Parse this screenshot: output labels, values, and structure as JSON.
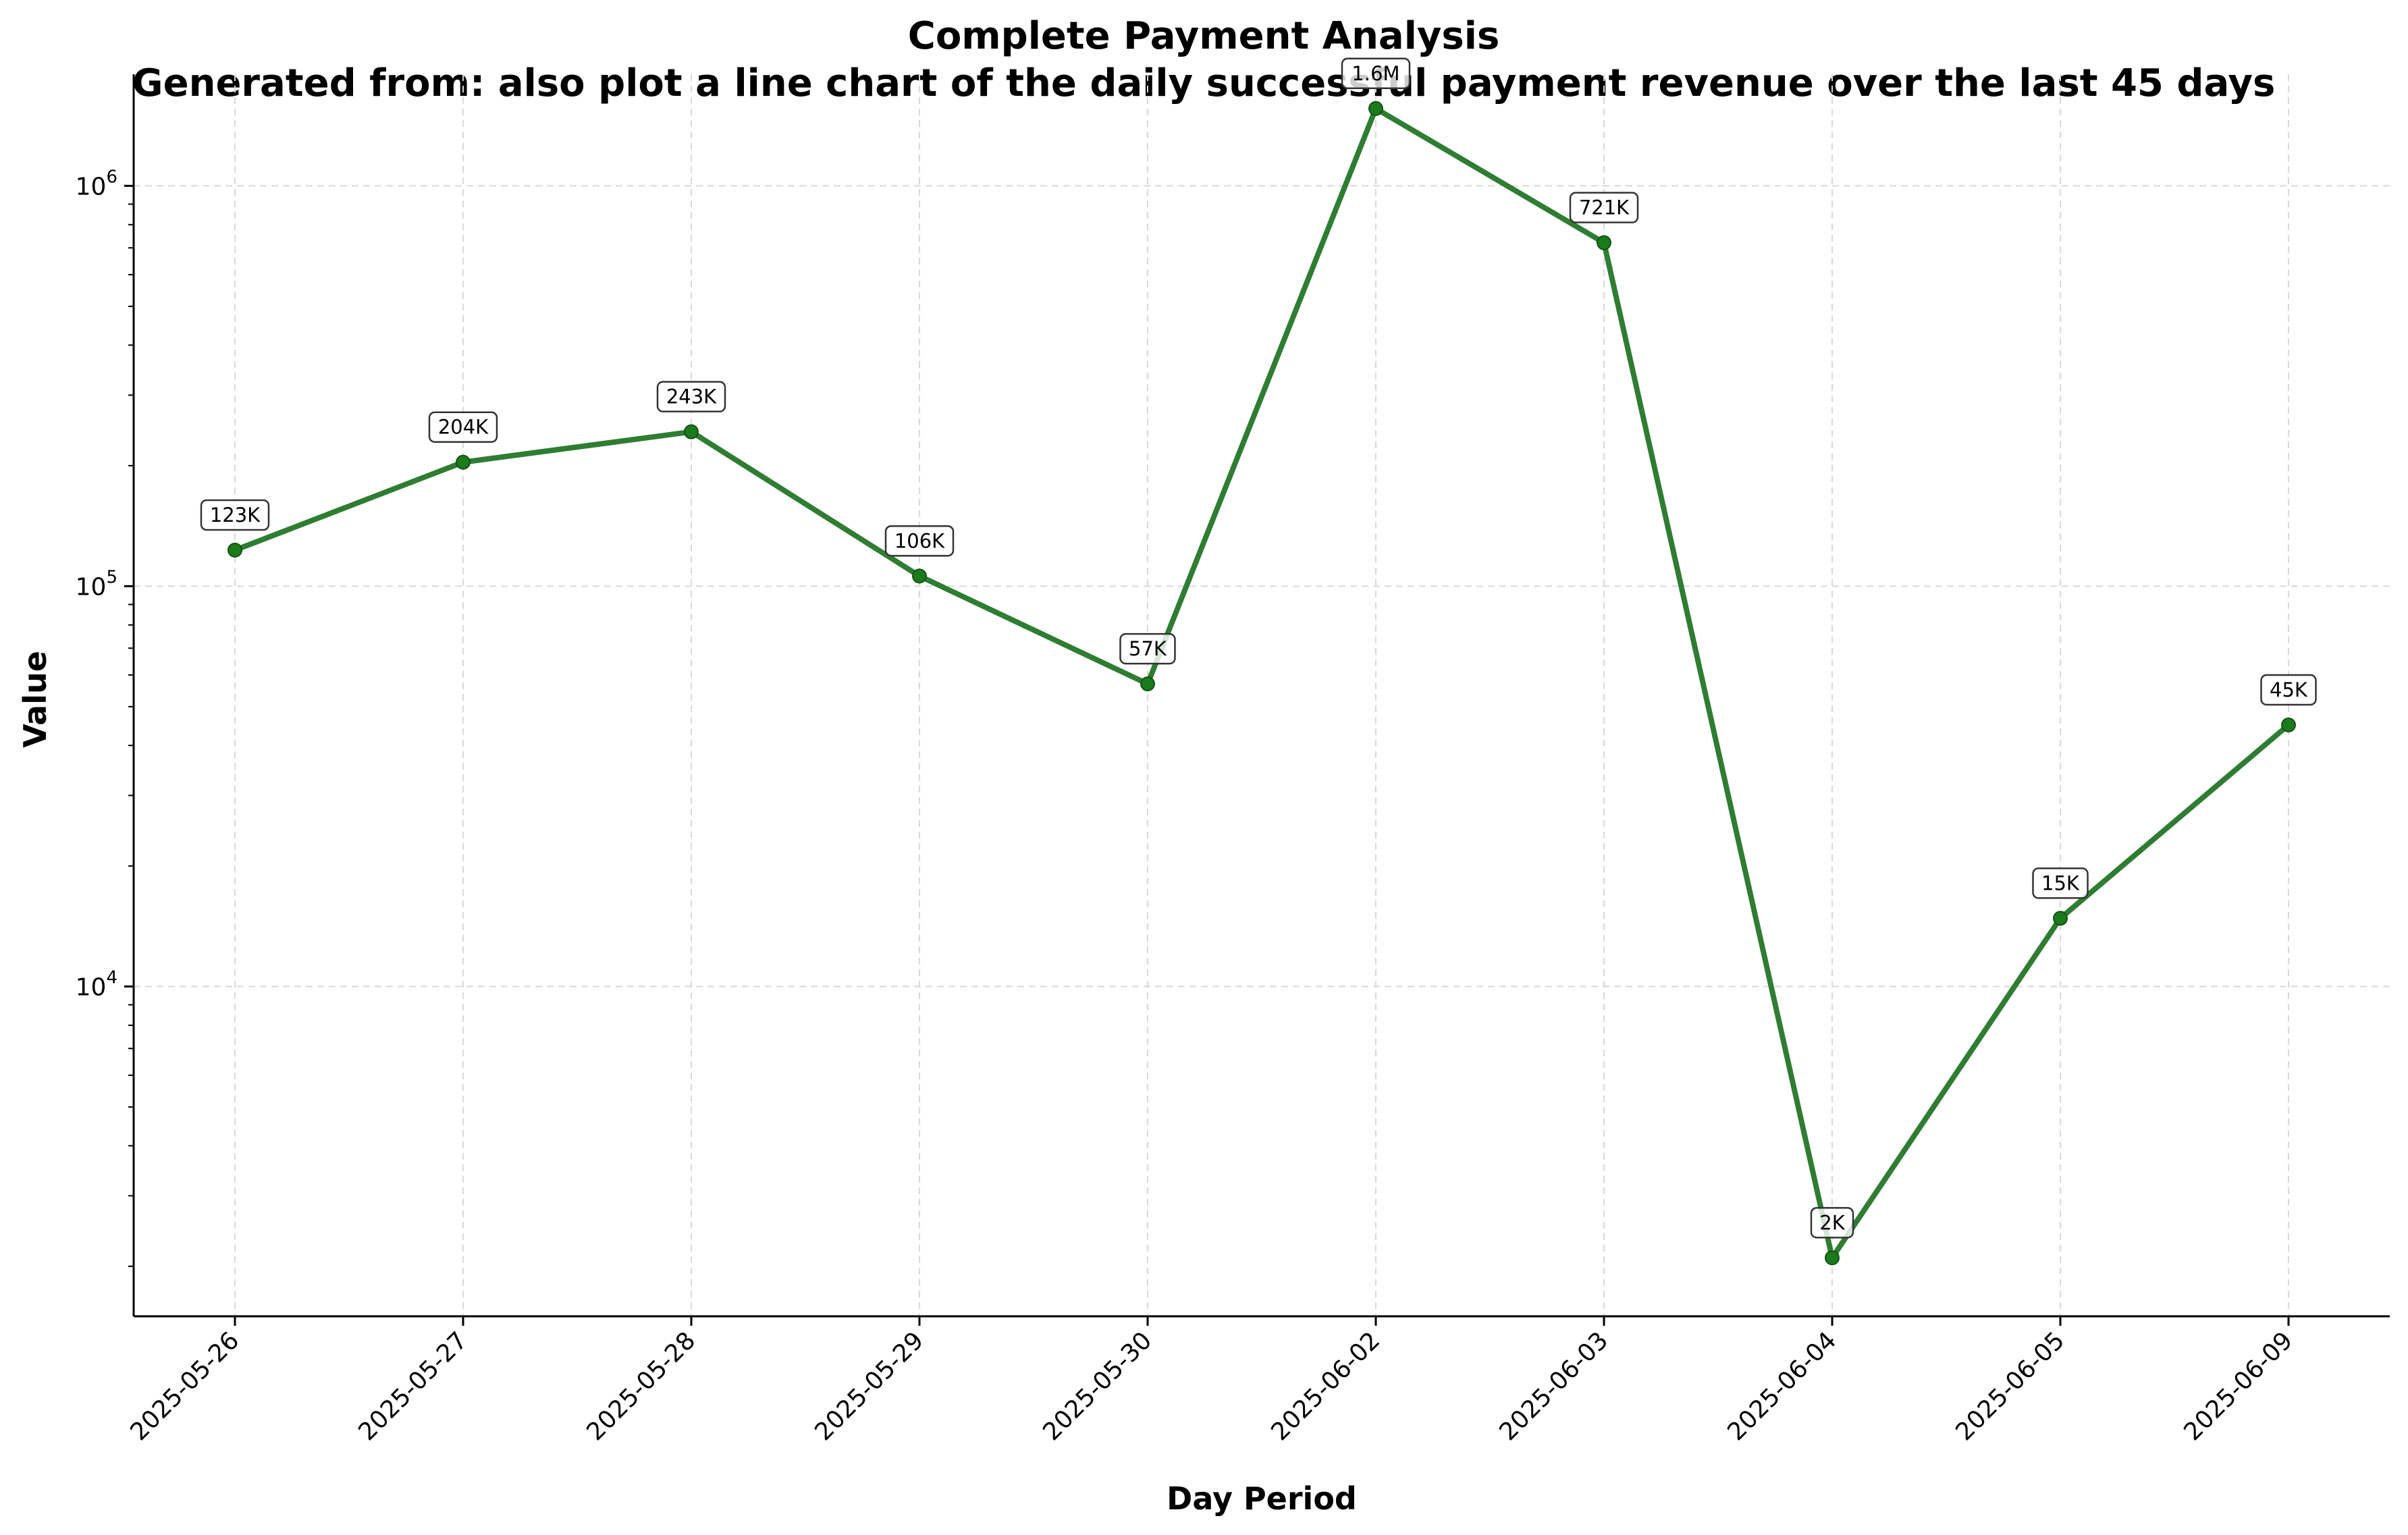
{
  "chart_data": {
    "type": "line",
    "title": "Complete Payment Analysis",
    "subtitle": "Generated from: also plot a line chart of the daily successful payment revenue over the last 45 days",
    "xlabel": "Day Period",
    "ylabel": "Value",
    "yscale": "log",
    "ylim": [
      1500,
      1900000
    ],
    "grid": true,
    "line_color": "#2e7d32",
    "marker_color": "#1b7a1b",
    "categories": [
      "2025-05-26",
      "2025-05-27",
      "2025-05-28",
      "2025-05-29",
      "2025-05-30",
      "2025-06-02",
      "2025-06-03",
      "2025-06-04",
      "2025-06-05",
      "2025-06-09"
    ],
    "values": [
      123000,
      204000,
      243000,
      106000,
      57000,
      1560000,
      721000,
      2100,
      14800,
      45000
    ],
    "data_labels": [
      "123K",
      "204K",
      "243K",
      "106K",
      "57K",
      "1.6M",
      "721K",
      "2K",
      "15K",
      "45K"
    ],
    "y_ticks": [
      {
        "value": 10000,
        "base": "10",
        "exp": "4"
      },
      {
        "value": 100000,
        "base": "10",
        "exp": "5"
      },
      {
        "value": 1000000,
        "base": "10",
        "exp": "6"
      }
    ]
  }
}
